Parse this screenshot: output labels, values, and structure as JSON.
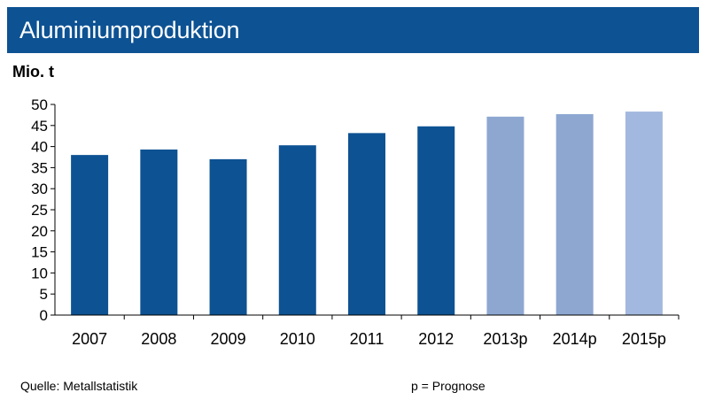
{
  "header": {
    "title": "Aluminiumproduktion"
  },
  "footer": {
    "source": "Quelle:  Metallstatistik",
    "note": "p = Prognose"
  },
  "chart_data": {
    "type": "bar",
    "title": "Aluminiumproduktion",
    "ylabel": "Mio. t",
    "xlabel": "",
    "categories": [
      "2007",
      "2008",
      "2009",
      "2010",
      "2011",
      "2012",
      "2013p",
      "2014p",
      "2015p"
    ],
    "values": [
      38.0,
      39.3,
      37.0,
      40.3,
      43.2,
      44.8,
      47.1,
      47.7,
      48.3
    ],
    "bar_colors": [
      "#0d5293",
      "#0d5293",
      "#0d5293",
      "#0d5293",
      "#0d5293",
      "#0d5293",
      "#8da7d1",
      "#8da7d1",
      "#a3b8de"
    ],
    "ylim": [
      0,
      50
    ],
    "yticks": [
      "0",
      "5",
      "10",
      "15",
      "20",
      "25",
      "30",
      "35",
      "40",
      "45",
      "50"
    ],
    "grid": false,
    "legend": "none"
  }
}
